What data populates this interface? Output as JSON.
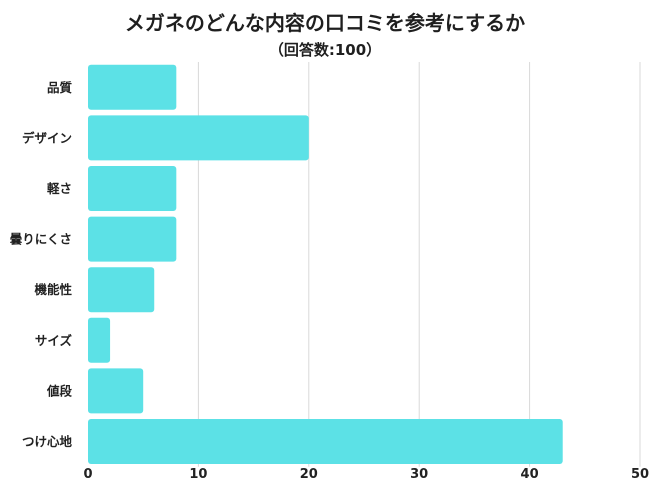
{
  "chart_data": {
    "type": "bar",
    "orientation": "horizontal",
    "title": "メガネのどんな内容の口コミを参考にするか",
    "subtitle": "（回答数:100）",
    "categories": [
      "品質",
      "デザイン",
      "軽さ",
      "曇りにくさ",
      "機能性",
      "サイズ",
      "値段",
      "つけ心地"
    ],
    "values": [
      8,
      20,
      8,
      8,
      6,
      2,
      5,
      43
    ],
    "xlim": [
      0,
      50
    ],
    "xticks": [
      0,
      10,
      20,
      30,
      40,
      50
    ],
    "xlabel": "",
    "ylabel": "",
    "grid": true,
    "bar_color": "#5ce1e6"
  }
}
